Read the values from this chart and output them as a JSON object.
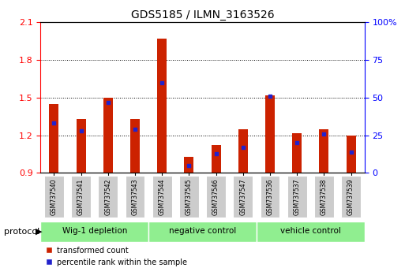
{
  "title": "GDS5185 / ILMN_3163526",
  "samples": [
    "GSM737540",
    "GSM737541",
    "GSM737542",
    "GSM737543",
    "GSM737544",
    "GSM737545",
    "GSM737546",
    "GSM737547",
    "GSM737536",
    "GSM737537",
    "GSM737538",
    "GSM737539"
  ],
  "transformed_counts": [
    1.45,
    1.33,
    1.5,
    1.33,
    1.97,
    1.03,
    1.12,
    1.25,
    1.52,
    1.22,
    1.25,
    1.2
  ],
  "percentile_ranks": [
    33,
    28,
    47,
    29,
    60,
    5,
    13,
    17,
    51,
    20,
    26,
    14
  ],
  "groups": [
    {
      "label": "Wig-1 depletion",
      "indices": [
        0,
        1,
        2,
        3
      ]
    },
    {
      "label": "negative control",
      "indices": [
        4,
        5,
        6,
        7
      ]
    },
    {
      "label": "vehicle control",
      "indices": [
        8,
        9,
        10,
        11
      ]
    }
  ],
  "ylim_left": [
    0.9,
    2.1
  ],
  "ylim_right": [
    0,
    100
  ],
  "yticks_left": [
    0.9,
    1.2,
    1.5,
    1.8,
    2.1
  ],
  "yticks_right": [
    0,
    25,
    50,
    75,
    100
  ],
  "bar_color": "#CC2200",
  "percentile_color": "#2222CC",
  "bar_width": 0.35,
  "baseline": 0.9,
  "group_color": "#90EE90",
  "ticklabel_box_color": "#cccccc",
  "background_color": "#ffffff"
}
